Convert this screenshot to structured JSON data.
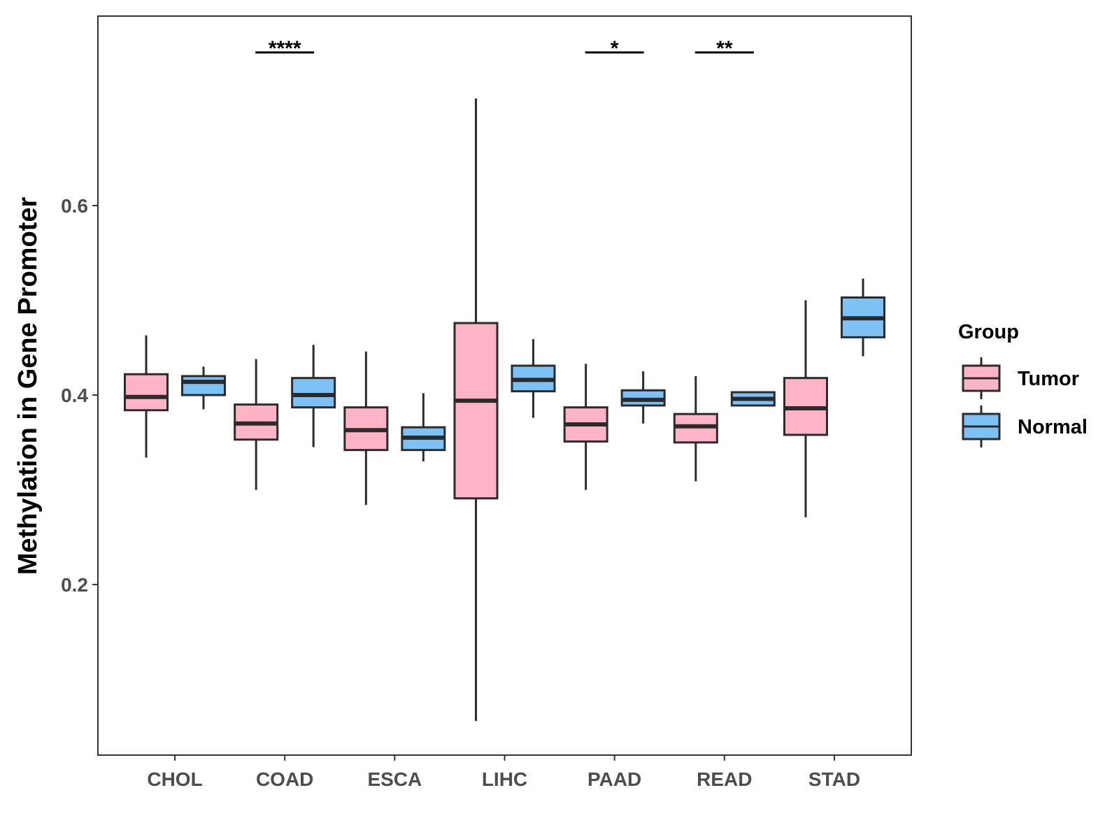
{
  "chart_data": {
    "type": "boxplot",
    "title": "",
    "xlabel": "",
    "ylabel": "Methylation in Gene Promoter",
    "ylim": [
      0.02,
      0.8
    ],
    "yticks": [
      0.2,
      0.4,
      0.6
    ],
    "ytick_labels": [
      "0.2",
      "0.4",
      "0.6"
    ],
    "grid": false,
    "categories": [
      "CHOL",
      "COAD",
      "ESCA",
      "LIHC",
      "PAAD",
      "READ",
      "STAD"
    ],
    "legend": {
      "title": "Group",
      "position": "right",
      "entries": [
        {
          "name": "Tumor",
          "color": "#FFB3C6"
        },
        {
          "name": "Normal",
          "color": "#7EC1F5"
        }
      ]
    },
    "series": [
      {
        "name": "Tumor",
        "color": "#FFB3C6",
        "boxes": [
          {
            "category": "CHOL",
            "min": 0.334,
            "q1": 0.384,
            "median": 0.398,
            "q3": 0.422,
            "max": 0.463
          },
          {
            "category": "COAD",
            "min": 0.3,
            "q1": 0.353,
            "median": 0.37,
            "q3": 0.39,
            "max": 0.438
          },
          {
            "category": "ESCA",
            "min": 0.284,
            "q1": 0.342,
            "median": 0.363,
            "q3": 0.387,
            "max": 0.446
          },
          {
            "category": "LIHC",
            "min": 0.056,
            "q1": 0.291,
            "median": 0.394,
            "q3": 0.476,
            "max": 0.713
          },
          {
            "category": "PAAD",
            "min": 0.3,
            "q1": 0.351,
            "median": 0.369,
            "q3": 0.387,
            "max": 0.433
          },
          {
            "category": "READ",
            "min": 0.309,
            "q1": 0.35,
            "median": 0.367,
            "q3": 0.38,
            "max": 0.42
          },
          {
            "category": "STAD",
            "min": 0.271,
            "q1": 0.358,
            "median": 0.386,
            "q3": 0.418,
            "max": 0.5
          }
        ]
      },
      {
        "name": "Normal",
        "color": "#7EC1F5",
        "boxes": [
          {
            "category": "CHOL",
            "min": 0.385,
            "q1": 0.4,
            "median": 0.414,
            "q3": 0.42,
            "max": 0.43
          },
          {
            "category": "COAD",
            "min": 0.345,
            "q1": 0.387,
            "median": 0.4,
            "q3": 0.418,
            "max": 0.453
          },
          {
            "category": "ESCA",
            "min": 0.33,
            "q1": 0.342,
            "median": 0.355,
            "q3": 0.366,
            "max": 0.402
          },
          {
            "category": "LIHC",
            "min": 0.376,
            "q1": 0.404,
            "median": 0.416,
            "q3": 0.431,
            "max": 0.459
          },
          {
            "category": "PAAD",
            "min": 0.37,
            "q1": 0.389,
            "median": 0.395,
            "q3": 0.405,
            "max": 0.425
          },
          {
            "category": "READ",
            "min": 0.389,
            "q1": 0.389,
            "median": 0.396,
            "q3": 0.403,
            "max": 0.403
          },
          {
            "category": "STAD",
            "min": 0.441,
            "q1": 0.461,
            "median": 0.481,
            "q3": 0.503,
            "max": 0.523
          }
        ]
      }
    ],
    "annotations": [
      {
        "category": "COAD",
        "label": "****"
      },
      {
        "category": "PAAD",
        "label": "*"
      },
      {
        "category": "READ",
        "label": "**"
      }
    ]
  }
}
